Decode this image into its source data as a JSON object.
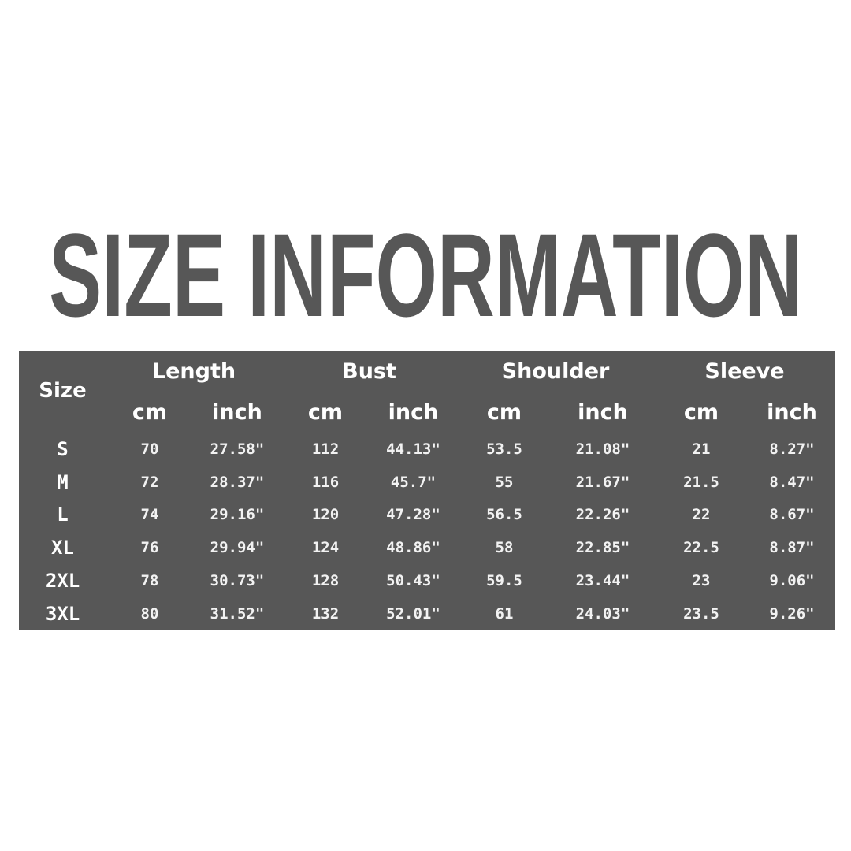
{
  "title": "SIZE INFORMATION",
  "table": {
    "size_header": "Size",
    "groups": [
      "Length",
      "Bust",
      "Shoulder",
      "Sleeve"
    ],
    "units": [
      "cm",
      "inch",
      "cm",
      "inch",
      "cm",
      "inch",
      "cm",
      "inch"
    ],
    "rows": [
      {
        "size": "S",
        "values": [
          "70",
          "27.58\"",
          "112",
          "44.13\"",
          "53.5",
          "21.08\"",
          "21",
          "8.27\""
        ]
      },
      {
        "size": "M",
        "values": [
          "72",
          "28.37\"",
          "116",
          "45.7\"",
          "55",
          "21.67\"",
          "21.5",
          "8.47\""
        ]
      },
      {
        "size": "L",
        "values": [
          "74",
          "29.16\"",
          "120",
          "47.28\"",
          "56.5",
          "22.26\"",
          "22",
          "8.67\""
        ]
      },
      {
        "size": "XL",
        "values": [
          "76",
          "29.94\"",
          "124",
          "48.86\"",
          "58",
          "22.85\"",
          "22.5",
          "8.87\""
        ]
      },
      {
        "size": "2XL",
        "values": [
          "78",
          "30.73\"",
          "128",
          "50.43\"",
          "59.5",
          "23.44\"",
          "23",
          "9.06\""
        ]
      },
      {
        "size": "3XL",
        "values": [
          "80",
          "31.52\"",
          "132",
          "52.01\"",
          "61",
          "24.03\"",
          "23.5",
          "9.26\""
        ]
      }
    ]
  },
  "colors": {
    "table_bg": "#575757",
    "title": "#575757",
    "text": "#ffffff"
  }
}
